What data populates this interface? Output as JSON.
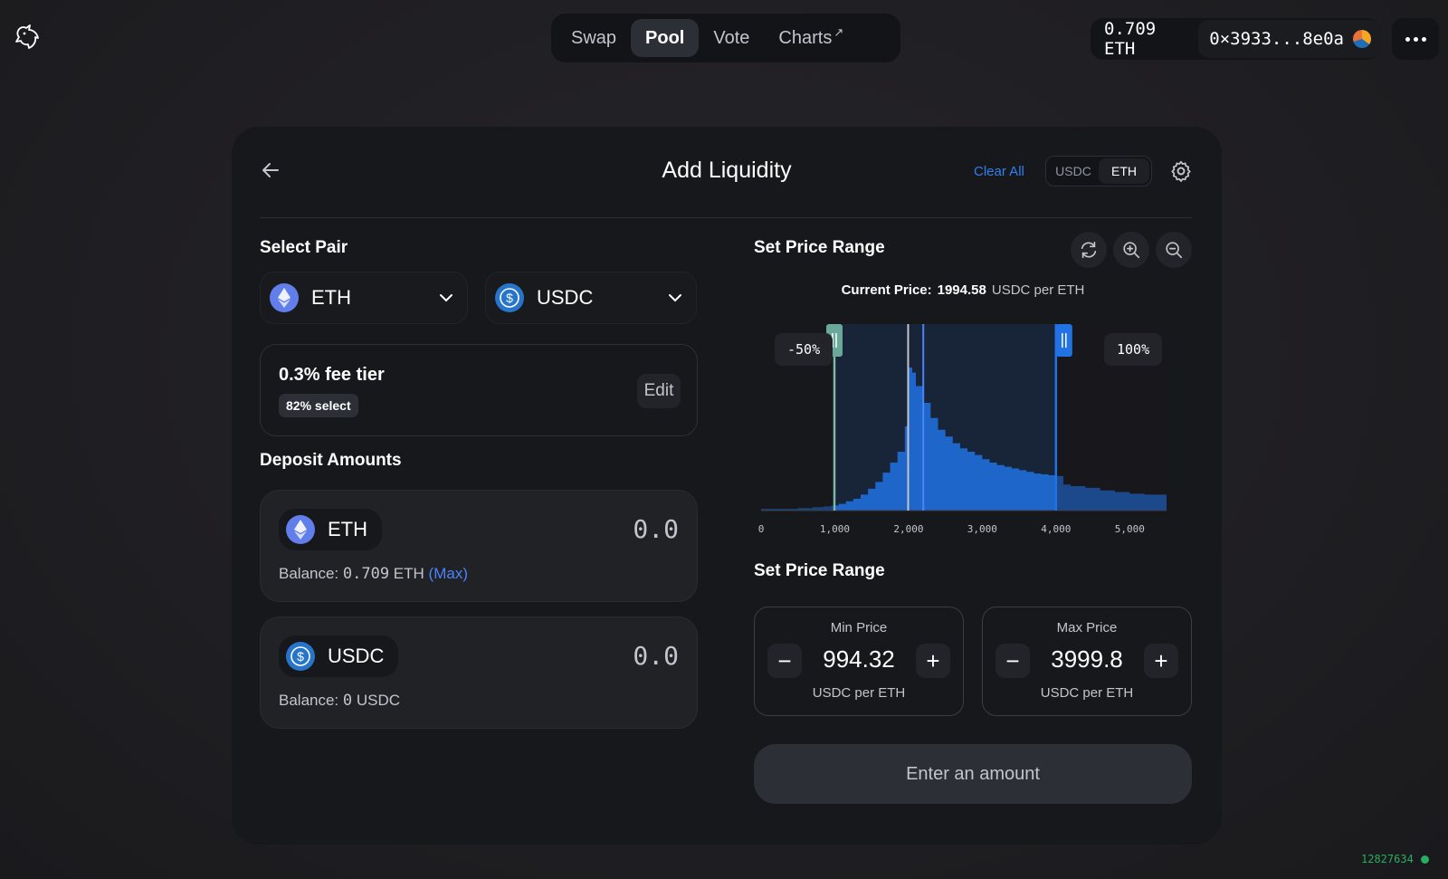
{
  "header": {
    "logo_icon": "unicorn-icon",
    "nav": [
      {
        "label": "Swap",
        "active": false
      },
      {
        "label": "Pool",
        "active": true
      },
      {
        "label": "Vote",
        "active": false
      },
      {
        "label": "Charts",
        "suffix": "↗",
        "active": false
      }
    ],
    "balance": "0.709 ETH",
    "address": "0×3933...8e0a",
    "more_icon": "more-dots-icon"
  },
  "card": {
    "title": "Add Liquidity",
    "clear_all": "Clear All",
    "toggle": {
      "options": [
        "USDC",
        "ETH"
      ],
      "selected": "ETH"
    },
    "select_pair_label": "Select Pair",
    "pair": [
      {
        "symbol": "ETH",
        "icon": "eth-icon"
      },
      {
        "symbol": "USDC",
        "icon": "usdc-icon"
      }
    ],
    "fee": {
      "title": "0.3% fee tier",
      "badge": "82% select",
      "edit_label": "Edit"
    },
    "deposit_label": "Deposit Amounts",
    "deposits": [
      {
        "symbol": "ETH",
        "amount": "0.0",
        "balance_prefix": "Balance: ",
        "balance_value": "0.709",
        "balance_unit": " ETH",
        "max_label": "(Max)"
      },
      {
        "symbol": "USDC",
        "amount": "0.0",
        "balance_prefix": "Balance: ",
        "balance_value": "0",
        "balance_unit": " USDC",
        "max_label": ""
      }
    ],
    "set_price_range_label": "Set Price Range",
    "current_price": {
      "label": "Current Price:",
      "value": "1994.58",
      "unit": "USDC per ETH"
    },
    "range_labels": {
      "low_pct": "-50%",
      "high_pct": "100%"
    },
    "min_price": {
      "label": "Min Price",
      "value": "994.32",
      "unit": "USDC per ETH"
    },
    "max_price": {
      "label": "Max Price",
      "value": "3999.8",
      "unit": "USDC per ETH"
    },
    "enter_button": "Enter an amount"
  },
  "chart_data": {
    "type": "area",
    "title": "",
    "xlabel": "",
    "ylabel": "",
    "xlim": [
      0,
      5500
    ],
    "x_ticks": [
      "0",
      "1,000",
      "2,000",
      "3,000",
      "4,000",
      "5,000"
    ],
    "x_tick_values": [
      0,
      1000,
      2000,
      3000,
      4000,
      5000
    ],
    "current_price": 1994.58,
    "range_min": 994.32,
    "range_max": 3999.8,
    "series": [
      {
        "x": [
          0,
          250,
          500,
          700,
          850,
          950,
          1050,
          1150,
          1250,
          1350,
          1450,
          1550,
          1650,
          1750,
          1850,
          1950,
          2000,
          2050,
          2100,
          2200,
          2300,
          2400,
          2500,
          2600,
          2700,
          2800,
          2900,
          3000,
          3100,
          3200,
          3300,
          3400,
          3500,
          3600,
          3700,
          3800,
          3900,
          4000,
          4100,
          4200,
          4400,
          4600,
          4800,
          5000,
          5200,
          5500
        ],
        "y": [
          2,
          2,
          3,
          4,
          5,
          6,
          8,
          11,
          14,
          19,
          26,
          34,
          45,
          57,
          70,
          100,
          170,
          164,
          148,
          128,
          110,
          96,
          88,
          80,
          74,
          70,
          66,
          61,
          57,
          54,
          52,
          50,
          48,
          46,
          44,
          43,
          42,
          41,
          31,
          29,
          27,
          24,
          22,
          20,
          19,
          18
        ]
      }
    ]
  }
}
